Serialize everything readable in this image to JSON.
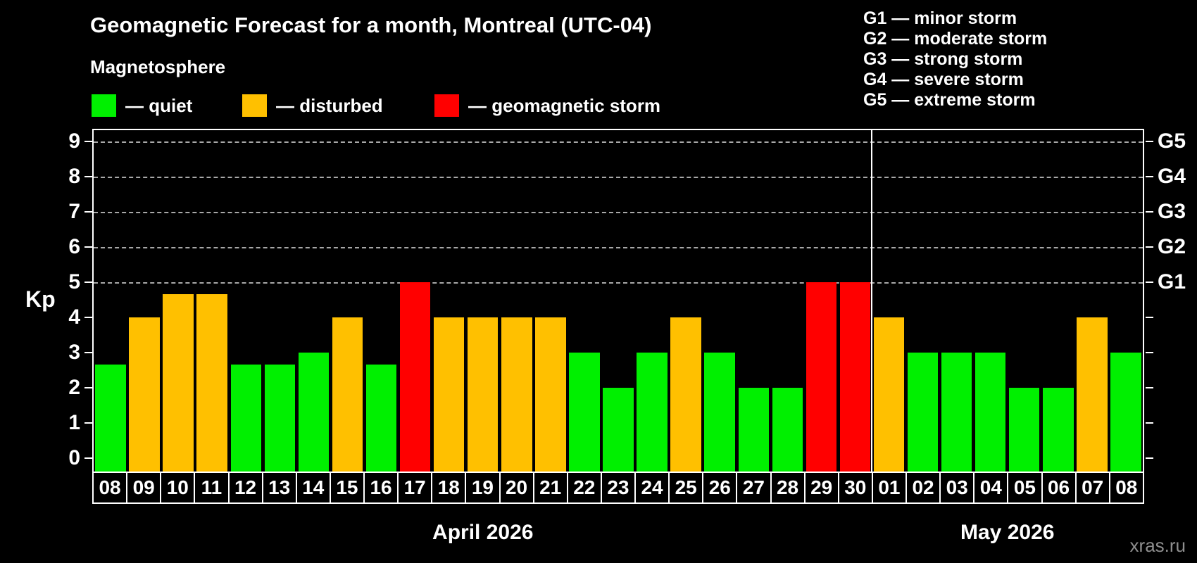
{
  "title": "Geomagnetic Forecast for a month, Montreal (UTC-04)",
  "legend": {
    "heading": "Magnetosphere",
    "items": [
      {
        "name": "quiet",
        "label": "— quiet",
        "color": "#00f000"
      },
      {
        "name": "disturbed",
        "label": "— disturbed",
        "color": "#ffc000"
      },
      {
        "name": "geomagnetic-storm",
        "label": "— geomagnetic storm",
        "color": "#ff0000"
      }
    ]
  },
  "storm_scale_legend": {
    "lines": [
      "G1 — minor storm",
      "G2 — moderate storm",
      "G3 — strong storm",
      "G4 — severe storm",
      "G5 — extreme storm"
    ]
  },
  "watermark": "xras.ru",
  "chart_data": {
    "type": "bar",
    "ylabel": "Kp",
    "ylim": [
      0,
      9
    ],
    "y_ticks": [
      "0",
      "1",
      "2",
      "3",
      "4",
      "5",
      "6",
      "7",
      "8",
      "9"
    ],
    "right_axis_ticks": [
      {
        "label": "G1",
        "kp": 5
      },
      {
        "label": "G2",
        "kp": 6
      },
      {
        "label": "G3",
        "kp": 7
      },
      {
        "label": "G4",
        "kp": 8
      },
      {
        "label": "G5",
        "kp": 9
      }
    ],
    "gridlines_at_kp": [
      5,
      6,
      7,
      8,
      9
    ],
    "grid": "dashed horizontal lines at storm levels only",
    "legend_position": "top-left",
    "months": [
      {
        "label": "April 2026",
        "first_day_index": 0,
        "num_days": 23
      },
      {
        "label": "May 2026",
        "first_day_index": 23,
        "num_days": 8
      }
    ],
    "status_colors": {
      "quiet": "#00f000",
      "disturbed": "#ffc000",
      "storm": "#ff0000"
    },
    "series": [
      {
        "day": "08",
        "kp": 2.67,
        "status": "quiet"
      },
      {
        "day": "09",
        "kp": 4.0,
        "status": "disturbed"
      },
      {
        "day": "10",
        "kp": 4.67,
        "status": "disturbed"
      },
      {
        "day": "11",
        "kp": 4.67,
        "status": "disturbed"
      },
      {
        "day": "12",
        "kp": 2.67,
        "status": "quiet"
      },
      {
        "day": "13",
        "kp": 2.67,
        "status": "quiet"
      },
      {
        "day": "14",
        "kp": 3.0,
        "status": "quiet"
      },
      {
        "day": "15",
        "kp": 4.0,
        "status": "disturbed"
      },
      {
        "day": "16",
        "kp": 2.67,
        "status": "quiet"
      },
      {
        "day": "17",
        "kp": 5.0,
        "status": "storm"
      },
      {
        "day": "18",
        "kp": 4.0,
        "status": "disturbed"
      },
      {
        "day": "19",
        "kp": 4.0,
        "status": "disturbed"
      },
      {
        "day": "20",
        "kp": 4.0,
        "status": "disturbed"
      },
      {
        "day": "21",
        "kp": 4.0,
        "status": "disturbed"
      },
      {
        "day": "22",
        "kp": 3.0,
        "status": "quiet"
      },
      {
        "day": "23",
        "kp": 2.0,
        "status": "quiet"
      },
      {
        "day": "24",
        "kp": 3.0,
        "status": "quiet"
      },
      {
        "day": "25",
        "kp": 4.0,
        "status": "disturbed"
      },
      {
        "day": "26",
        "kp": 3.0,
        "status": "quiet"
      },
      {
        "day": "27",
        "kp": 2.0,
        "status": "quiet"
      },
      {
        "day": "28",
        "kp": 2.0,
        "status": "quiet"
      },
      {
        "day": "29",
        "kp": 5.0,
        "status": "storm"
      },
      {
        "day": "30",
        "kp": 5.0,
        "status": "storm"
      },
      {
        "day": "01",
        "kp": 4.0,
        "status": "disturbed"
      },
      {
        "day": "02",
        "kp": 3.0,
        "status": "quiet"
      },
      {
        "day": "03",
        "kp": 3.0,
        "status": "quiet"
      },
      {
        "day": "04",
        "kp": 3.0,
        "status": "quiet"
      },
      {
        "day": "05",
        "kp": 2.0,
        "status": "quiet"
      },
      {
        "day": "06",
        "kp": 2.0,
        "status": "quiet"
      },
      {
        "day": "07",
        "kp": 4.0,
        "status": "disturbed"
      },
      {
        "day": "08",
        "kp": 3.0,
        "status": "quiet"
      }
    ]
  }
}
